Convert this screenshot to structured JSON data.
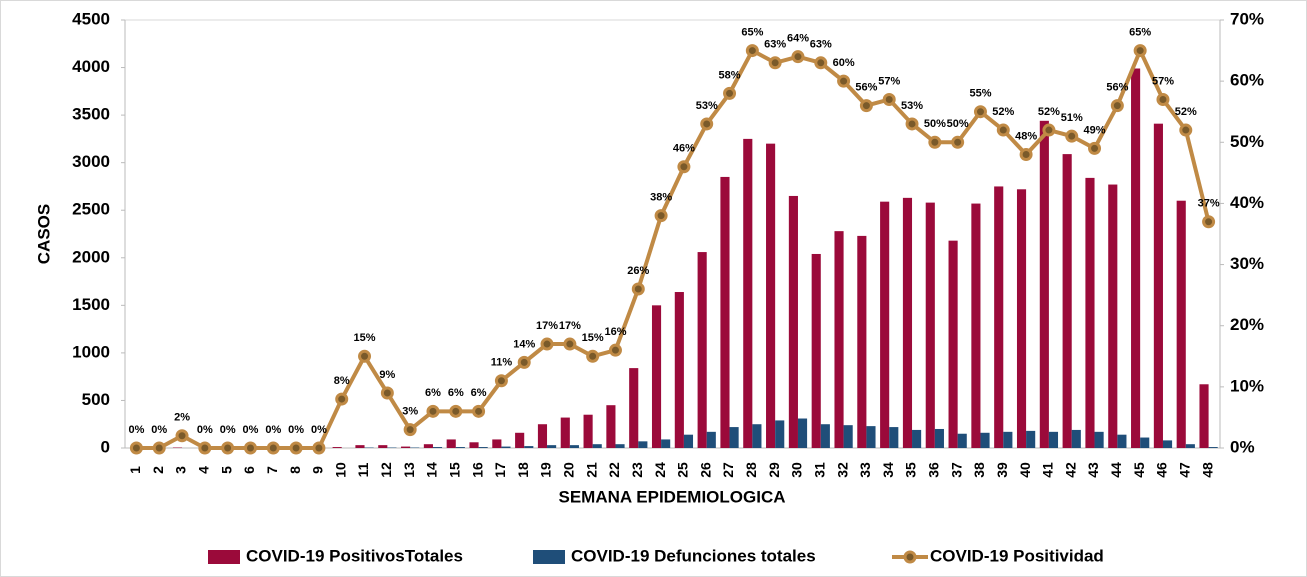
{
  "chart_data": {
    "type": "bar-line",
    "x_label": "SEMANA EPIDEMIOLOGICA",
    "y_label": "CASOS",
    "categories": [
      "1",
      "2",
      "3",
      "4",
      "5",
      "6",
      "7",
      "8",
      "9",
      "10",
      "11",
      "12",
      "13",
      "14",
      "15",
      "16",
      "17",
      "18",
      "19",
      "20",
      "21",
      "22",
      "23",
      "24",
      "25",
      "26",
      "27",
      "28",
      "29",
      "30",
      "31",
      "32",
      "33",
      "34",
      "35",
      "36",
      "37",
      "38",
      "39",
      "40",
      "41",
      "42",
      "43",
      "44",
      "45",
      "46",
      "47",
      "48"
    ],
    "series": [
      {
        "name": "COVID-19 PositivosTotales",
        "color": "#9b0a3a",
        "type": "bar",
        "values": [
          0,
          0,
          5,
          0,
          0,
          0,
          0,
          0,
          0,
          10,
          30,
          30,
          15,
          40,
          90,
          60,
          90,
          160,
          250,
          320,
          350,
          450,
          840,
          1500,
          1640,
          2060,
          2850,
          3250,
          3200,
          2650,
          2040,
          2280,
          2230,
          2590,
          2630,
          2580,
          2180,
          2570,
          2750,
          2720,
          3440,
          3090,
          2840,
          2770,
          3990,
          3410,
          2600,
          670
        ]
      },
      {
        "name": "COVID-19 Defunciones totales",
        "color": "#1f4e79",
        "type": "bar",
        "values": [
          0,
          0,
          0,
          0,
          0,
          0,
          0,
          0,
          0,
          0,
          5,
          5,
          5,
          10,
          10,
          10,
          15,
          20,
          30,
          30,
          40,
          40,
          70,
          90,
          140,
          170,
          220,
          250,
          290,
          310,
          250,
          240,
          230,
          220,
          190,
          200,
          150,
          160,
          170,
          180,
          170,
          190,
          170,
          140,
          110,
          80,
          40,
          10
        ]
      },
      {
        "name": "COVID-19 Positividad",
        "color": "#c08a45",
        "type": "line",
        "axis": "y2",
        "values": [
          0,
          0,
          2,
          0,
          0,
          0,
          0,
          0,
          0,
          8,
          15,
          9,
          3,
          6,
          6,
          6,
          11,
          14,
          17,
          17,
          15,
          16,
          26,
          38,
          46,
          53,
          58,
          65,
          63,
          64,
          63,
          60,
          56,
          57,
          53,
          50,
          50,
          55,
          52,
          48,
          52,
          51,
          49,
          56,
          65,
          57,
          52,
          37
        ],
        "value_labels": [
          "0%",
          "0%",
          "2%",
          "0%",
          "0%",
          "0%",
          "0%",
          "0%",
          "0%",
          "8%",
          "15%",
          "9%",
          "3%",
          "6%",
          "6%",
          "6%",
          "11%",
          "14%",
          "17%",
          "17%",
          "15%",
          "16%",
          "26%",
          "38%",
          "46%",
          "53%",
          "58%",
          "65%",
          "63%",
          "64%",
          "63%",
          "60%",
          "56%",
          "57%",
          "53%",
          "50%",
          "50%",
          "55%",
          "52%",
          "48%",
          "52%",
          "51%",
          "49%",
          "56%",
          "65%",
          "57%",
          "52%",
          "37%"
        ]
      }
    ],
    "ylim": [
      0,
      4500
    ],
    "yticks": [
      0,
      500,
      1000,
      1500,
      2000,
      2500,
      3000,
      3500,
      4000,
      4500
    ],
    "y2lim": [
      0,
      70
    ],
    "y2ticks": [
      {
        "value": 0,
        "label": "0%"
      },
      {
        "value": 10,
        "label": "10%"
      },
      {
        "value": 20,
        "label": "20%"
      },
      {
        "value": 30,
        "label": "30%"
      },
      {
        "value": 40,
        "label": "40%"
      },
      {
        "value": 50,
        "label": "50%"
      },
      {
        "value": 60,
        "label": "60%"
      },
      {
        "value": 70,
        "label": "70%"
      }
    ],
    "legend": "bottom"
  }
}
